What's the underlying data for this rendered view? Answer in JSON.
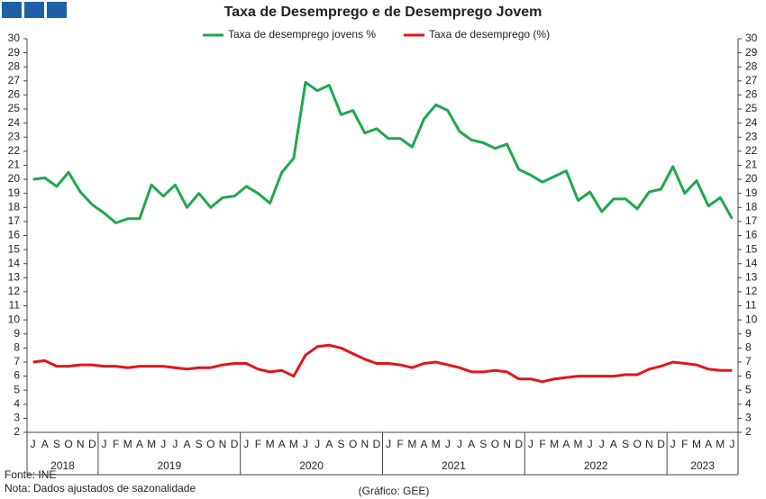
{
  "chart_data": {
    "type": "line",
    "title": "Taxa de Desemprego e de Desemprego Jovem",
    "categories": [
      "J",
      "A",
      "S",
      "O",
      "N",
      "D",
      "J",
      "F",
      "M",
      "A",
      "M",
      "J",
      "J",
      "A",
      "S",
      "O",
      "N",
      "D",
      "J",
      "F",
      "M",
      "A",
      "M",
      "J",
      "J",
      "A",
      "S",
      "O",
      "N",
      "D",
      "J",
      "F",
      "M",
      "A",
      "M",
      "J",
      "J",
      "A",
      "S",
      "O",
      "N",
      "D",
      "J",
      "F",
      "M",
      "A",
      "M",
      "J",
      "J",
      "A",
      "S",
      "O",
      "N",
      "D",
      "J",
      "F",
      "M",
      "A",
      "M",
      "J"
    ],
    "years": [
      "2018",
      "2019",
      "2020",
      "2021",
      "2022",
      "2023"
    ],
    "series": [
      {
        "name": "Taxa de desemprego jovens %",
        "color": "#1fa84f",
        "values": [
          20.0,
          20.1,
          19.5,
          20.5,
          19.1,
          18.2,
          17.6,
          16.9,
          17.2,
          17.2,
          19.6,
          18.8,
          19.6,
          18.0,
          19.0,
          18.0,
          18.7,
          18.8,
          19.5,
          19.0,
          18.3,
          20.5,
          21.5,
          26.9,
          26.3,
          26.7,
          24.6,
          24.9,
          23.3,
          23.6,
          22.9,
          22.9,
          22.3,
          24.3,
          25.3,
          24.9,
          23.4,
          22.8,
          22.6,
          22.2,
          22.5,
          20.7,
          20.3,
          19.8,
          20.2,
          20.6,
          18.5,
          19.1,
          17.7,
          18.6,
          18.6,
          17.9,
          19.1,
          19.3,
          20.9,
          19.0,
          19.9,
          18.1,
          18.7,
          17.2
        ]
      },
      {
        "name": "Taxa de desemprego (%)",
        "color": "#e0161b",
        "values": [
          7.0,
          7.1,
          6.7,
          6.7,
          6.8,
          6.8,
          6.7,
          6.7,
          6.6,
          6.7,
          6.7,
          6.7,
          6.6,
          6.5,
          6.6,
          6.6,
          6.8,
          6.9,
          6.9,
          6.5,
          6.3,
          6.4,
          6.0,
          7.5,
          8.1,
          8.2,
          8.0,
          7.6,
          7.2,
          6.9,
          6.9,
          6.8,
          6.6,
          6.9,
          7.0,
          6.8,
          6.6,
          6.3,
          6.3,
          6.4,
          6.3,
          5.8,
          5.8,
          5.6,
          5.8,
          5.9,
          6.0,
          6.0,
          6.0,
          6.0,
          6.1,
          6.1,
          6.5,
          6.7,
          7.0,
          6.9,
          6.8,
          6.5,
          6.4,
          6.4
        ]
      }
    ],
    "ylim": [
      2,
      30
    ],
    "yticks": [
      2,
      3,
      4,
      5,
      6,
      7,
      8,
      9,
      10,
      11,
      12,
      13,
      14,
      15,
      16,
      17,
      18,
      19,
      20,
      21,
      22,
      23,
      24,
      25,
      26,
      27,
      28,
      29,
      30
    ],
    "y2lim": [
      2,
      30
    ],
    "y2ticks": [
      2,
      3,
      4,
      5,
      6,
      7,
      8,
      9,
      10,
      11,
      12,
      13,
      14,
      15,
      16,
      17,
      18,
      19,
      20,
      21,
      22,
      23,
      24,
      25,
      26,
      27,
      28,
      29,
      30
    ],
    "grid": false,
    "source": "Fonte: INE",
    "note": "Nota: Dados ajustados de sazonalidade",
    "credit": "(Gráfico: GEE)"
  }
}
